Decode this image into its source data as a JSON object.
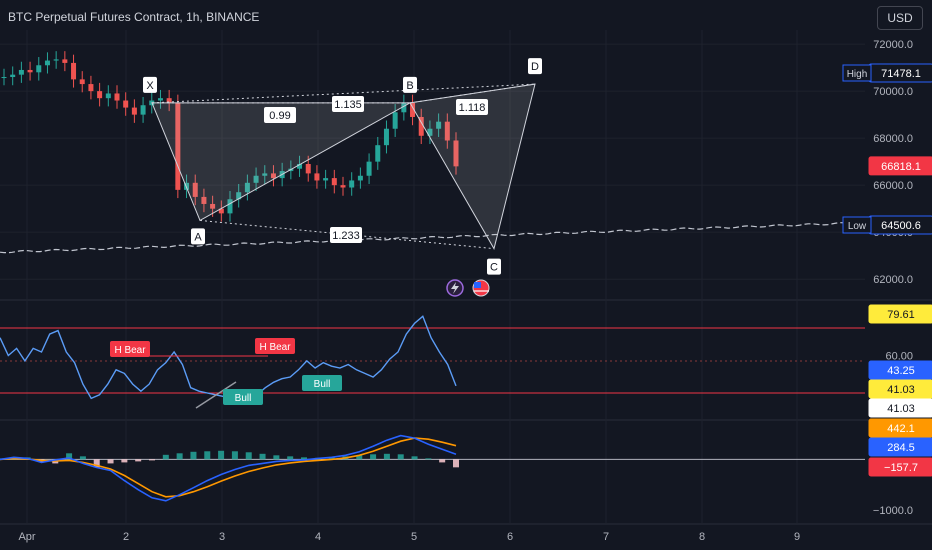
{
  "header": {
    "title": "BTC Perpetual Futures Contract, 1h, BINANCE",
    "currency_button": "USD"
  },
  "colors": {
    "background": "#131722",
    "grid": "#1e222d",
    "axis_text": "#b2b5be",
    "candle_up": "#26a69a",
    "candle_down": "#ef5350",
    "rsi_line": "#5b9cf6",
    "macd_line": "#2962ff",
    "signal_line": "#ff9800",
    "overbought_line": "#f23645"
  },
  "chart_data": [
    {
      "type": "candlestick",
      "name": "price-pane",
      "x_ticks": [
        "Apr",
        "2",
        "3",
        "4",
        "5",
        "6",
        "7",
        "8",
        "9"
      ],
      "y_ticks": [
        62000.0,
        64000.0,
        66000.0,
        68000.0,
        70000.0,
        72000.0
      ],
      "ylim": [
        61200,
        72600
      ],
      "close_series": [
        70600,
        70700,
        70900,
        70800,
        71100,
        71300,
        71350,
        71200,
        70500,
        70300,
        70000,
        69700,
        69900,
        69600,
        69300,
        69000,
        69400,
        69600,
        69700,
        69500,
        65800,
        66100,
        65500,
        65200,
        65000,
        64800,
        65400,
        65700,
        66100,
        66400,
        66500,
        66300,
        66600,
        66700,
        66900,
        66500,
        66200,
        66300,
        66000,
        65900,
        66200,
        66400,
        67000,
        67700,
        68400,
        69100,
        69500,
        68900,
        68100,
        68400,
        68700,
        67900,
        66800
      ],
      "price_labels": [
        {
          "label": "High",
          "value": "71478.1"
        },
        {
          "value": "66818.1"
        },
        {
          "label": "Low",
          "value": "64500.6"
        }
      ],
      "harmonic_pattern": {
        "points": [
          {
            "label": "X",
            "price": 69500
          },
          {
            "label": "A",
            "price": 64500
          },
          {
            "label": "B",
            "price": 69500
          },
          {
            "label": "C",
            "price": 63300
          },
          {
            "label": "D",
            "price": 70300
          }
        ],
        "ratios": [
          "0.99",
          "1.135",
          "1.118",
          "1.233"
        ]
      }
    },
    {
      "type": "line",
      "name": "rsi-pane",
      "y_ticks": [
        60.0
      ],
      "price_labels": [
        "79.61",
        "43.25",
        "41.03",
        "41.03"
      ],
      "signals": [
        {
          "text": "H Bear"
        },
        {
          "text": "H Bear"
        },
        {
          "text": "Bull"
        },
        {
          "text": "Bull"
        }
      ],
      "values": [
        70,
        60,
        64,
        57,
        64,
        62,
        72,
        74,
        62,
        56,
        44,
        36,
        38,
        44,
        52,
        50,
        44,
        40,
        44,
        52,
        56,
        62,
        55,
        42,
        40,
        39,
        38,
        37,
        35,
        34,
        36,
        38,
        42,
        45,
        47,
        48,
        52,
        57,
        53,
        56,
        54,
        53,
        55,
        52,
        50,
        48,
        52,
        58,
        62,
        72,
        78,
        82,
        70,
        62,
        55,
        43
      ]
    },
    {
      "type": "line",
      "name": "macd-pane",
      "y_ticks": [
        -1000.0
      ],
      "price_labels": [
        "442.1",
        "284.5",
        "-157.7"
      ],
      "macd": [
        0,
        40,
        20,
        -60,
        -10,
        30,
        -80,
        -160,
        -220,
        -420,
        -600,
        -760,
        -820,
        -700,
        -560,
        -420,
        -300,
        -200,
        -120,
        -80,
        -40,
        -20,
        -10,
        20,
        40,
        80,
        150,
        260,
        380,
        470,
        420,
        300,
        200,
        100
      ],
      "signal": [
        0,
        20,
        10,
        -20,
        -30,
        -20,
        -60,
        -120,
        -190,
        -320,
        -480,
        -640,
        -740,
        -720,
        -640,
        -540,
        -430,
        -330,
        -240,
        -170,
        -110,
        -70,
        -40,
        -20,
        0,
        30,
        80,
        160,
        260,
        360,
        420,
        400,
        340,
        270
      ],
      "histogram": [
        20,
        30,
        40,
        -50,
        -80,
        120,
        60,
        -160,
        -80,
        -60,
        -40,
        -20,
        90,
        120,
        150,
        160,
        170,
        160,
        140,
        110,
        80,
        60,
        40,
        30,
        40,
        60,
        80,
        100,
        110,
        100,
        60,
        20,
        -60,
        -157.7
      ]
    }
  ]
}
